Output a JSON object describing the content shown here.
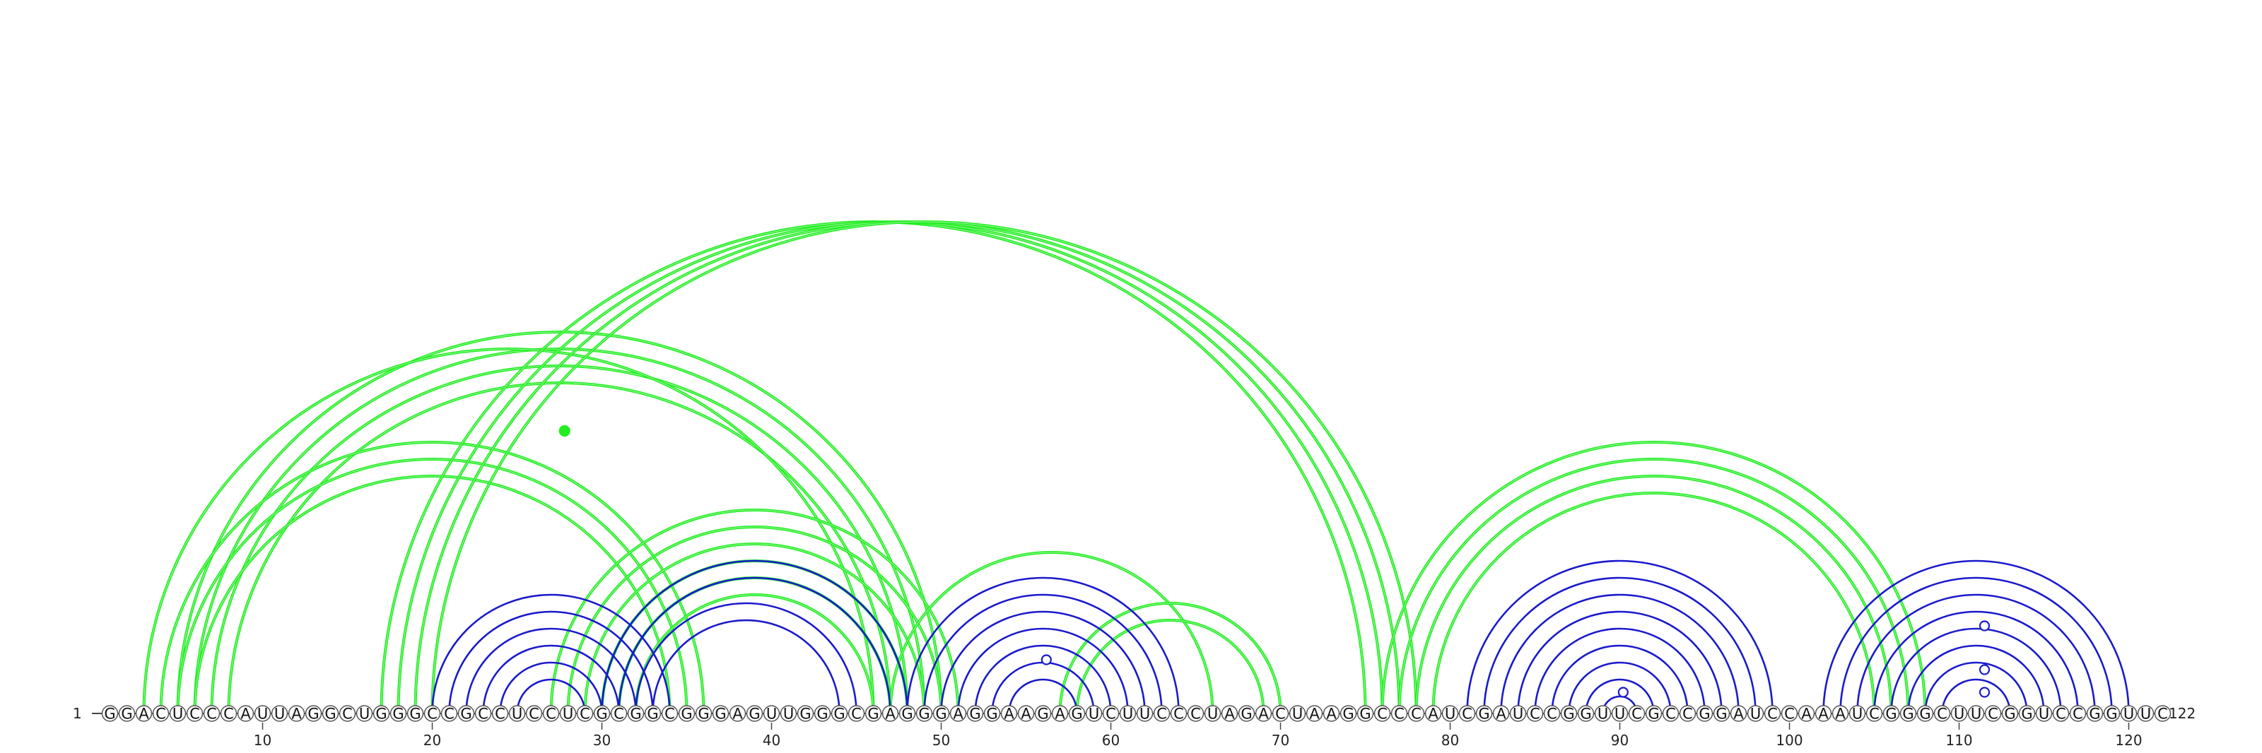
{
  "sequence": "GGACUCCCAUUAGGCUGGGCCGCCUCCUCGCGGCGGGAGUUGGGCGAGGGAGGAAGAGUCUUCCCUAGACUAAGGCCCAUCGAUCCGGUUCGCCGGAUCCAAAUCGGGCUUCGGUCCGGUUC",
  "length": 122,
  "start_label": "1",
  "end_label": "122",
  "tick_labels": [
    "10",
    "20",
    "30",
    "40",
    "50",
    "60",
    "70",
    "80",
    "90",
    "100",
    "110",
    "120"
  ],
  "colors": {
    "green": "#22ee22",
    "blue": "#1a1acc",
    "backbone": "#444444",
    "node_fill": "#ffffff",
    "node_stroke": "#555555"
  },
  "pairs": [
    {
      "i": 5,
      "j": 50,
      "color": "green"
    },
    {
      "i": 6,
      "j": 49,
      "color": "green"
    },
    {
      "i": 7,
      "j": 48,
      "color": "green"
    },
    {
      "i": 8,
      "j": 47,
      "color": "green"
    },
    {
      "i": 4,
      "j": 36,
      "color": "green"
    },
    {
      "i": 5,
      "j": 35,
      "color": "green"
    },
    {
      "i": 6,
      "j": 34,
      "color": "green"
    },
    {
      "i": 3,
      "j": 46,
      "color": "green"
    },
    {
      "i": 17,
      "j": 75,
      "color": "green"
    },
    {
      "i": 18,
      "j": 76,
      "color": "green"
    },
    {
      "i": 19,
      "j": 77,
      "color": "green"
    },
    {
      "i": 20,
      "j": 78,
      "color": "green"
    },
    {
      "i": 27,
      "j": 51,
      "color": "green"
    },
    {
      "i": 28,
      "j": 50,
      "color": "green"
    },
    {
      "i": 29,
      "j": 49,
      "color": "green"
    },
    {
      "i": 30,
      "j": 48,
      "color": "green"
    },
    {
      "i": 31,
      "j": 47,
      "color": "green"
    },
    {
      "i": 32,
      "j": 46,
      "color": "green"
    },
    {
      "i": 47,
      "j": 66,
      "color": "green"
    },
    {
      "i": 57,
      "j": 70,
      "color": "green"
    },
    {
      "i": 58,
      "j": 69,
      "color": "green"
    },
    {
      "i": 76,
      "j": 108,
      "color": "green"
    },
    {
      "i": 77,
      "j": 107,
      "color": "green"
    },
    {
      "i": 78,
      "j": 106,
      "color": "green"
    },
    {
      "i": 79,
      "j": 105,
      "color": "green"
    },
    {
      "i": 20,
      "j": 34,
      "color": "blue"
    },
    {
      "i": 21,
      "j": 33,
      "color": "blue"
    },
    {
      "i": 22,
      "j": 32,
      "color": "blue"
    },
    {
      "i": 23,
      "j": 31,
      "color": "blue"
    },
    {
      "i": 24,
      "j": 30,
      "color": "blue"
    },
    {
      "i": 25,
      "j": 29,
      "color": "blue"
    },
    {
      "i": 30,
      "j": 48,
      "color": "blue"
    },
    {
      "i": 31,
      "j": 47,
      "color": "blue"
    },
    {
      "i": 32,
      "j": 45,
      "color": "blue"
    },
    {
      "i": 33,
      "j": 44,
      "color": "blue"
    },
    {
      "i": 48,
      "j": 64,
      "color": "blue"
    },
    {
      "i": 49,
      "j": 63,
      "color": "blue"
    },
    {
      "i": 50,
      "j": 62,
      "color": "blue"
    },
    {
      "i": 51,
      "j": 61,
      "color": "blue"
    },
    {
      "i": 52,
      "j": 60,
      "color": "blue"
    },
    {
      "i": 53,
      "j": 59,
      "color": "blue"
    },
    {
      "i": 54,
      "j": 58,
      "color": "blue"
    },
    {
      "i": 81,
      "j": 99,
      "color": "blue"
    },
    {
      "i": 82,
      "j": 98,
      "color": "blue"
    },
    {
      "i": 83,
      "j": 97,
      "color": "blue"
    },
    {
      "i": 84,
      "j": 96,
      "color": "blue"
    },
    {
      "i": 85,
      "j": 95,
      "color": "blue"
    },
    {
      "i": 86,
      "j": 94,
      "color": "blue"
    },
    {
      "i": 87,
      "j": 93,
      "color": "blue"
    },
    {
      "i": 88,
      "j": 92,
      "color": "blue"
    },
    {
      "i": 89,
      "j": 91,
      "color": "blue"
    },
    {
      "i": 102,
      "j": 120,
      "color": "blue"
    },
    {
      "i": 103,
      "j": 119,
      "color": "blue"
    },
    {
      "i": 104,
      "j": 118,
      "color": "blue"
    },
    {
      "i": 105,
      "j": 117,
      "color": "blue"
    },
    {
      "i": 106,
      "j": 116,
      "color": "blue"
    },
    {
      "i": 107,
      "j": 115,
      "color": "blue"
    },
    {
      "i": 108,
      "j": 114,
      "color": "blue"
    },
    {
      "i": 109,
      "j": 113,
      "color": "blue"
    }
  ],
  "markers": [
    {
      "pos": 27.8,
      "offset": 400,
      "style": "filled",
      "color": "green"
    },
    {
      "pos": 56.2,
      "offset": 76,
      "style": "open",
      "color": "blue"
    },
    {
      "pos": 90.2,
      "offset": 30,
      "style": "open",
      "color": "blue"
    },
    {
      "pos": 111.5,
      "offset": 124,
      "style": "open",
      "color": "blue"
    },
    {
      "pos": 111.5,
      "offset": 62,
      "style": "open",
      "color": "blue"
    },
    {
      "pos": 111.5,
      "offset": 30,
      "style": "open",
      "color": "blue"
    }
  ]
}
